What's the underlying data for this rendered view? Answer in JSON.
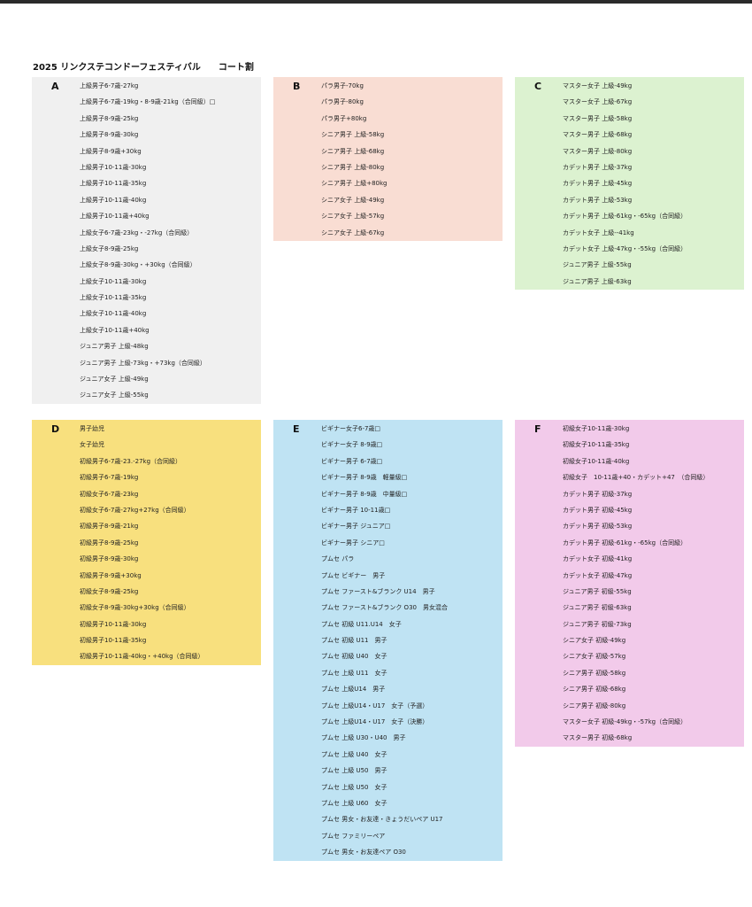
{
  "title": "2025 リンクステコンドーフェスティバル　　コート割",
  "courts": [
    {
      "id": "a",
      "letter": "A",
      "color": "#f0f0f0",
      "items": [
        "上級男子6-7歳-27kg",
        "上級男子6-7歳-19kg・8-9歳-21kg（合同級）□",
        "上級男子8-9歳-25kg",
        "上級男子8-9歳-30kg",
        "上級男子8-9歳+30kg",
        "上級男子10-11歳-30kg",
        "上級男子10-11歳-35kg",
        "上級男子10-11歳-40kg",
        "上級男子10-11歳+40kg",
        "上級女子6-7歳-23kg・-27kg（合同級）",
        "上級女子8-9歳-25kg",
        "上級女子8-9歳-30kg・+30kg（合同級）",
        "上級女子10-11歳-30kg",
        "上級女子10-11歳-35kg",
        "上級女子10-11歳-40kg",
        "上級女子10-11歳+40kg",
        "ジュニア男子 上級-48kg",
        "ジュニア男子 上級-73kg・+73kg（合同級）",
        "ジュニア女子 上級-49kg",
        "ジュニア女子 上級-55kg"
      ]
    },
    {
      "id": "b",
      "letter": "B",
      "color": "#f9ddd3",
      "items": [
        "パラ男子-70kg",
        "パラ男子-80kg",
        "パラ男子+80kg",
        "シニア男子 上級-58kg",
        "シニア男子 上級-68kg",
        "シニア男子 上級-80kg",
        "シニア男子 上級+80kg",
        "シニア女子 上級-49kg",
        "シニア女子 上級-57kg",
        "シニア女子 上級-67kg"
      ]
    },
    {
      "id": "c",
      "letter": "C",
      "color": "#dcf2d0",
      "items": [
        "マスター女子 上級-49kg",
        "マスター女子 上級-67kg",
        "マスター男子 上級-58kg",
        "マスター男子 上級-68kg",
        "マスター男子 上級-80kg",
        "カデット男子 上級-37kg",
        "カデット男子 上級-45kg",
        "カデット男子 上級-53kg",
        "カデット男子 上級-61kg・-65kg（合同級）",
        "カデット女子 上級--41kg",
        "カデット女子 上級-47kg・-55kg（合同級）",
        "ジュニア男子 上級-55kg",
        "ジュニア男子 上級-63kg"
      ]
    },
    {
      "id": "d",
      "letter": "D",
      "color": "#f8e07e",
      "items": [
        "男子幼児",
        "女子幼児",
        "初級男子6-7歳-23.-27kg（合同級）",
        "初級男子6-7歳-19kg",
        "初級女子6-7歳-23kg",
        "初級女子6-7歳-27kg+27kg（合同級）",
        "初級男子8-9歳-21kg",
        "初級男子8-9歳-25kg",
        "初級男子8-9歳-30kg",
        "初級男子8-9歳+30kg",
        "初級女子8-9歳-25kg",
        "初級女子8-9歳-30kg+30kg（合同級）",
        "初級男子10-11歳-30kg",
        "初級男子10-11歳-35kg",
        "初級男子10-11歳-40kg・+40kg（合同級）"
      ]
    },
    {
      "id": "e",
      "letter": "E",
      "color": "#bfe3f3",
      "items": [
        "ビギナー女子6-7歳□",
        "ビギナー女子 8-9歳□",
        "ビギナー男子 6-7歳□",
        "ビギナー男子 8-9歳　軽量級□",
        "ビギナー男子 8-9歳　中量級□",
        "ビギナー男子 10-11歳□",
        "ビギナー男子 ジュニア□",
        "ビギナー男子 シニア□",
        "プムセ パラ",
        "プムセ ビギナー　男子",
        "プムセ ファースト&ブランク U14　男子",
        "プムセ ファースト&ブランク O30　男女混合",
        "プムセ 初級 U11.U14　女子",
        "プムセ 初級 U11　男子",
        "プムセ 初級 U40　女子",
        "プムセ 上級 U11　女子",
        "プムセ 上級U14　男子",
        "プムセ 上級U14・U17　女子（予選）",
        "プムセ 上級U14・U17　女子（決勝）",
        "プムセ 上級 U30・U40　男子",
        "プムセ 上級 U40　女子",
        "プムセ 上級 U50　男子",
        "プムセ 上級 U50　女子",
        "プムセ 上級 U60　女子",
        "プムセ 男女・お友達・きょうだいペア U17",
        "プムセ ファミリーペア",
        "プムセ 男女・お友達ペア O30"
      ]
    },
    {
      "id": "f",
      "letter": "F",
      "color": "#f2caea",
      "items": [
        "初級女子10-11歳-30kg",
        "初級女子10-11歳-35kg",
        "初級女子10-11歳-40kg",
        "初級女子　10-11歳+40・カデット+47　（合同級）",
        "カデット男子 初級-37kg",
        "カデット男子 初級-45kg",
        "カデット男子 初級-53kg",
        "カデット男子 初級-61kg・-65kg（合同級）",
        "カデット女子 初級-41kg",
        "カデット女子 初級-47kg",
        "ジュニア男子 初級-55kg",
        "ジュニア男子 初級-63kg",
        "ジュニア男子 初級-73kg",
        "シニア女子 初級-49kg",
        "シニア女子 初級-57kg",
        "シニア男子 初級-58kg",
        "シニア男子 初級-68kg",
        "シニア男子 初級-80kg",
        "マスター女子 初級-49kg・-57kg（合同級）",
        "マスター男子 初級-68kg"
      ]
    }
  ]
}
